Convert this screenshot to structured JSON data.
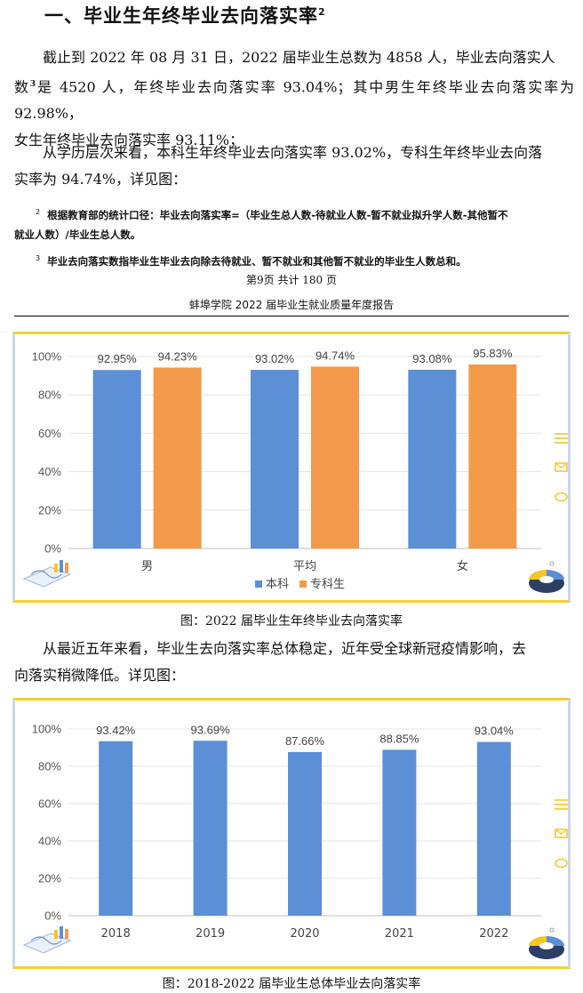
{
  "section": {
    "title": "一、毕业生年终毕业去向落实率",
    "title_note": "2"
  },
  "paragraphs": {
    "p1_a": "截止到 2022 年 08 月 31 日，2022 届毕业生总数为 4858 人，毕业去向落实人",
    "p1_b_pre": "数",
    "p1_b_note": "3",
    "p1_b_post": "是 4520 人，年终毕业去向落实率 93.04%；其中男生年终毕业去向落实率为 92.98%，",
    "p1_c": "女生年终毕业去向落实率 93.11%；",
    "p2_a": "从学历层次来看，本科生年终毕业去向落实率 93.02%，专科生年终毕业去向落",
    "p2_b": "实率为 94.74%，详见图：",
    "p3_a": "从最近五年来看，毕业生去向落实率总体稳定，近年受全球新冠疫情影响，去",
    "p3_b": "向落实稍微降低。详见图："
  },
  "footnotes": {
    "fn2_mark": "2",
    "fn2_a": "根据教育部的统计口径：毕业去向落实率=（毕业生总人数-待就业人数-暂不就业拟升学人数-其他暂不",
    "fn2_b": "就业人数）/毕业生总人数。",
    "fn3_mark": "3",
    "fn3": "毕业去向落实数指毕业生毕业去向除去待就业、暂不就业和其他暂不就业的毕业生人数总和。"
  },
  "page_footer": "第9页  共计 180 页",
  "running_header": "蚌埠学院 2022 届毕业生就业质量年度报告",
  "captions": {
    "fig1": "图：2022 届毕业生年终毕业去向落实率",
    "fig2": "图：2018-2022 届毕业生总体毕业去向落实率"
  },
  "colors": {
    "benke": "#5b8fd6",
    "zhuanke": "#f39a4a",
    "bar2": "#5b8fd6",
    "frame_top": "#f3cf3a",
    "icon": "#f3c623"
  },
  "chart_data": [
    {
      "type": "bar",
      "categories": [
        "男",
        "平均",
        "女"
      ],
      "series": [
        {
          "name": "本科",
          "values": [
            92.95,
            93.02,
            93.08
          ],
          "labels": [
            "92.95%",
            "93.02%",
            "93.08%"
          ]
        },
        {
          "name": "专科生",
          "values": [
            94.23,
            94.74,
            95.83
          ],
          "labels": [
            "94.23%",
            "94.74%",
            "95.83%"
          ]
        }
      ],
      "yticks": [
        "0%",
        "20%",
        "40%",
        "60%",
        "80%",
        "100%"
      ],
      "ylim": [
        0,
        100
      ],
      "legend": "bottom",
      "grid": true
    },
    {
      "type": "bar",
      "categories": [
        "2018",
        "2019",
        "2020",
        "2021",
        "2022"
      ],
      "series": [
        {
          "values": [
            93.42,
            93.69,
            87.66,
            88.85,
            93.04
          ],
          "labels": [
            "93.42%",
            "93.69%",
            "87.66%",
            "88.85%",
            "93.04%"
          ]
        }
      ],
      "yticks": [
        "0%",
        "20%",
        "40%",
        "60%",
        "80%",
        "100%"
      ],
      "ylim": [
        0,
        100
      ],
      "legend": "none",
      "grid": true
    }
  ]
}
